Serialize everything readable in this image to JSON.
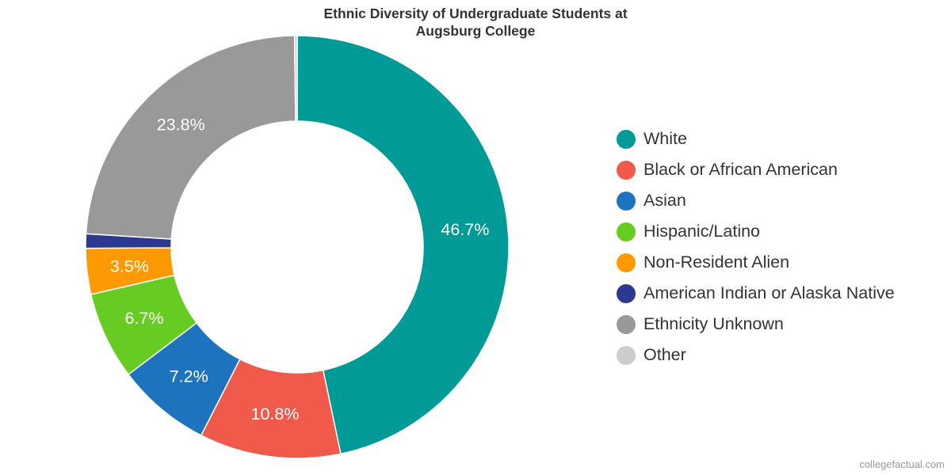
{
  "chart_data": {
    "type": "pie",
    "title": [
      "Ethnic Diversity of Undergraduate Students at",
      "Augsburg College"
    ],
    "categories": [
      "White",
      "Black or African American",
      "Asian",
      "Hispanic/Latino",
      "Non-Resident Alien",
      "American Indian or Alaska Native",
      "Ethnicity Unknown",
      "Other"
    ],
    "values": [
      46.7,
      10.8,
      7.2,
      6.7,
      3.5,
      1.1,
      23.8,
      0.2
    ],
    "data_labels": [
      "46.7%",
      "10.8%",
      "7.2%",
      "6.7%",
      "3.5%",
      "",
      "23.8%",
      ""
    ],
    "colors": [
      "#009a97",
      "#f05a4a",
      "#1e73be",
      "#66cc22",
      "#ff9900",
      "#2b3990",
      "#999999",
      "#cccccc"
    ],
    "legend_position": "right",
    "donut": true
  },
  "credit": "collegefactual.com"
}
